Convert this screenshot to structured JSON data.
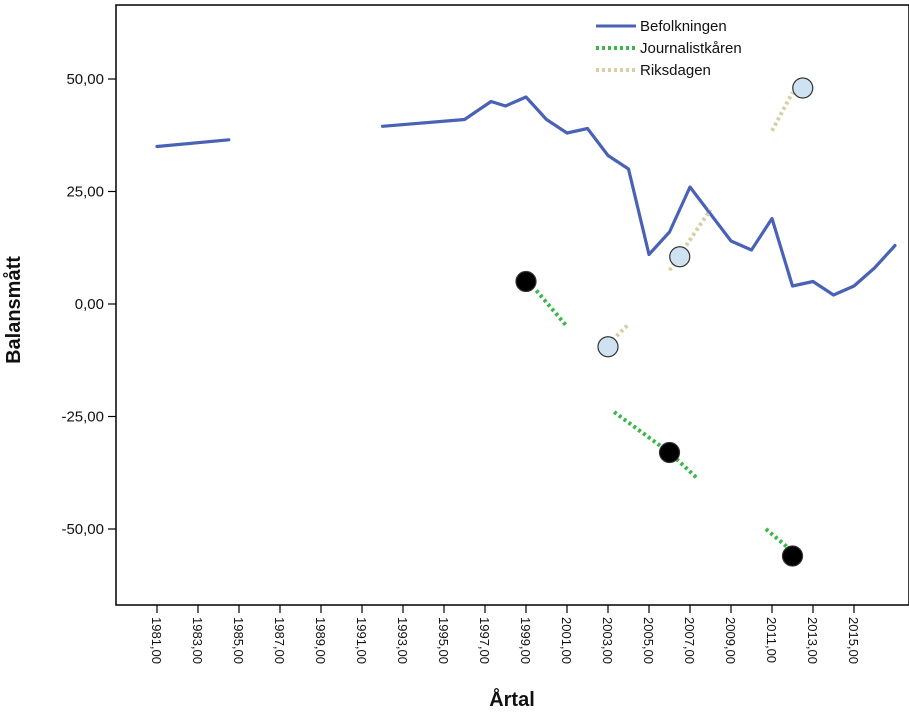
{
  "chart_data": {
    "type": "line",
    "xlabel": "Årtal",
    "ylabel": "Balansmått",
    "xlim": [
      1977.2,
      2018.6
    ],
    "ylim": [
      -66,
      66
    ],
    "x_ticks": [
      "1981,00",
      "1983,00",
      "1985,00",
      "1987,00",
      "1989,00",
      "1991,00",
      "1993,00",
      "1995,00",
      "1997,00",
      "1999,00",
      "2001,00",
      "2003,00",
      "2005,00",
      "2007,00",
      "2009,00",
      "2011,00",
      "2013,00",
      "2015,00"
    ],
    "y_ticks": [
      "50,00",
      "25,00",
      "0,00",
      "-25,00",
      "-50,00"
    ],
    "y_tick_values": [
      50,
      25,
      0,
      -25,
      -50
    ],
    "legend_position": "top-right",
    "series": [
      {
        "name": "Befolkningen",
        "color": "#4a62b6",
        "style": "solid",
        "segments": [
          [
            [
              1981,
              35
            ],
            [
              1984.5,
              36.5
            ]
          ],
          [
            [
              1992,
              39.5
            ],
            [
              1996,
              41
            ],
            [
              1997.3,
              45
            ],
            [
              1998,
              44
            ],
            [
              1999,
              46
            ],
            [
              2000,
              41
            ],
            [
              2001,
              38
            ],
            [
              2002,
              39
            ],
            [
              2003,
              33
            ],
            [
              2004,
              30
            ],
            [
              2005,
              11
            ],
            [
              2006,
              16
            ],
            [
              2007,
              26
            ],
            [
              2008,
              20
            ],
            [
              2009,
              14
            ],
            [
              2010,
              12
            ],
            [
              2011,
              19
            ],
            [
              2012,
              4
            ],
            [
              2013,
              5
            ],
            [
              2014,
              2
            ],
            [
              2015,
              4
            ],
            [
              2016,
              8
            ],
            [
              2017,
              13
            ]
          ]
        ]
      },
      {
        "name": "Journalistkåren",
        "color": "#3cb84a",
        "style": "dotted",
        "segments": [
          [
            [
              1999.5,
              3
            ],
            [
              2001,
              -5
            ]
          ],
          [
            [
              2003.3,
              -24
            ],
            [
              2006,
              -33
            ],
            [
              2007.3,
              -38.5
            ]
          ],
          [
            [
              2010.7,
              -50
            ],
            [
              2012,
              -55
            ]
          ]
        ],
        "points": [
          [
            1999,
            5
          ],
          [
            2006,
            -33
          ],
          [
            2012,
            -56
          ]
        ],
        "point_color": "#000000"
      },
      {
        "name": "Riksdagen",
        "color": "#d9cfa6",
        "style": "dotted",
        "segments": [
          [
            [
              2003,
              -9
            ],
            [
              2004,
              -4.5
            ]
          ],
          [
            [
              2006,
              7.5
            ],
            [
              2008,
              21
            ]
          ],
          [
            [
              2011,
              38.5
            ],
            [
              2012,
              47
            ]
          ]
        ],
        "points": [
          [
            2003,
            -9.5
          ],
          [
            2006.5,
            10.5
          ],
          [
            2012.5,
            48
          ]
        ],
        "point_color": "#cfe2f1"
      }
    ]
  }
}
